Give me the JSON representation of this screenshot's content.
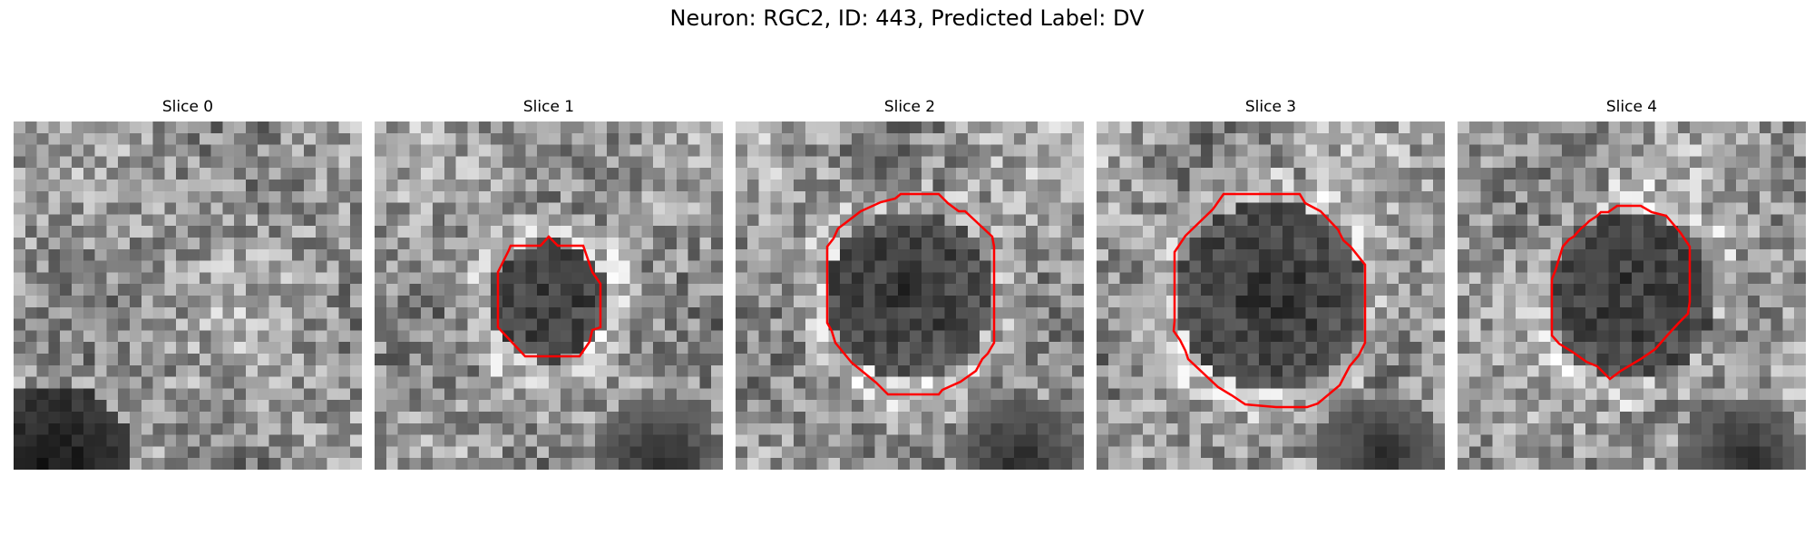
{
  "figure": {
    "title": "Neuron: RGC2, ID: 443, Predicted Label: DV"
  },
  "panels": [
    {
      "title": "Slice 0",
      "has_contour": false,
      "blob": null,
      "dark_corner": "bottom-left"
    },
    {
      "title": "Slice 1",
      "has_contour": true,
      "blob": "small",
      "dark_corner": "bottom-right"
    },
    {
      "title": "Slice 2",
      "has_contour": true,
      "blob": "medium",
      "dark_corner": "bottom-right"
    },
    {
      "title": "Slice 3",
      "has_contour": true,
      "blob": "large",
      "dark_corner": "bottom-right"
    },
    {
      "title": "Slice 4",
      "has_contour": true,
      "blob": "medium",
      "dark_corner": "bottom-right"
    }
  ],
  "colors": {
    "contour": "#ff0000",
    "image_cmap": "gray"
  }
}
